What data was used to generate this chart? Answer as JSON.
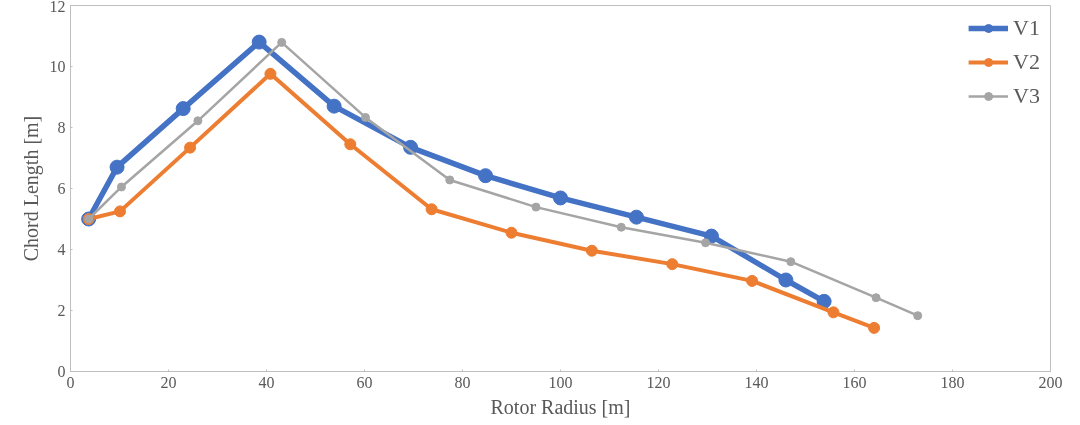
{
  "chart_data": {
    "type": "line",
    "xlabel": "Rotor Radius [m]",
    "ylabel": "Chord Length [m]",
    "xlim": [
      0,
      200
    ],
    "xticks": [
      0,
      20,
      40,
      60,
      80,
      100,
      120,
      140,
      160,
      180,
      200
    ],
    "ylim": [
      0,
      12
    ],
    "yticks": [
      0,
      2,
      4,
      6,
      8,
      10,
      12
    ],
    "grid": false,
    "legend": "top right",
    "marker": "circle",
    "line_style": "solid",
    "series": [
      {
        "name": "V1",
        "color": "#4472c4",
        "x": [
          3.7,
          9.5,
          23,
          38.5,
          53.8,
          69.4,
          84.7,
          100,
          115.5,
          130.8,
          146,
          153.8
        ],
        "values": [
          5.0,
          6.7,
          8.62,
          10.8,
          8.7,
          7.35,
          6.42,
          5.69,
          5.06,
          4.44,
          3.0,
          2.3
        ]
      },
      {
        "name": "V2",
        "color": "#ed7d31",
        "x": [
          3.7,
          10.1,
          24.4,
          40.8,
          57.1,
          73.7,
          90,
          106.4,
          122.8,
          139.1,
          155.7,
          164
        ],
        "values": [
          5.0,
          5.25,
          7.34,
          9.76,
          7.45,
          5.32,
          4.55,
          3.96,
          3.52,
          2.97,
          1.94,
          1.43
        ]
      },
      {
        "name": "V3",
        "color": "#a5a5a5",
        "x": [
          3.7,
          10.4,
          26,
          43.1,
          60.2,
          77.4,
          95,
          112.4,
          129.6,
          147,
          164.4,
          172.9
        ],
        "values": [
          5.0,
          6.05,
          8.22,
          10.79,
          8.33,
          6.28,
          5.39,
          4.73,
          4.22,
          3.6,
          2.42,
          1.83
        ]
      }
    ]
  }
}
